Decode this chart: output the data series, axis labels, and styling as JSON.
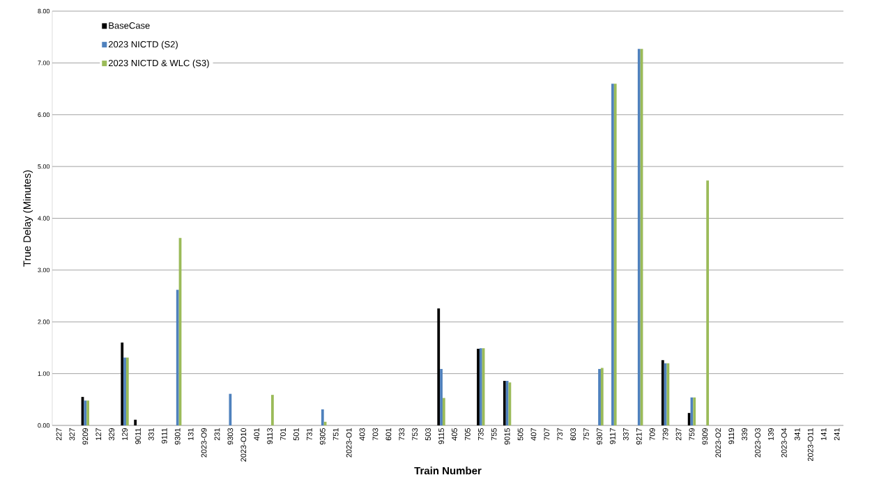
{
  "chart_data": {
    "type": "bar",
    "xlabel": "Train Number",
    "ylabel": "True Delay (Minutes)",
    "categories": [
      "227",
      "327",
      "9209",
      "127",
      "329",
      "129",
      "9011",
      "331",
      "9111",
      "9301",
      "131",
      "2023-O9",
      "231",
      "9303",
      "2023-O10",
      "401",
      "9113",
      "701",
      "501",
      "731",
      "9305",
      "751",
      "2023-O1",
      "403",
      "703",
      "601",
      "733",
      "753",
      "503",
      "9115",
      "405",
      "705",
      "735",
      "755",
      "9015",
      "505",
      "407",
      "707",
      "737",
      "603",
      "757",
      "9307",
      "9117",
      "337",
      "9217",
      "709",
      "739",
      "237",
      "759",
      "9309",
      "2023-O2",
      "9119",
      "339",
      "2023-O3",
      "139",
      "2023-O4",
      "341",
      "2023-O11",
      "141",
      "241"
    ],
    "series": [
      {
        "name": "BaseCase",
        "color": "#000000",
        "values": [
          0,
          0,
          0.55,
          0,
          0,
          1.6,
          0.11,
          0,
          0,
          0,
          0,
          0,
          0,
          0,
          0,
          0,
          0,
          0,
          0,
          0,
          0,
          0,
          0,
          0,
          0,
          0,
          0,
          0,
          0,
          2.26,
          0,
          0,
          1.48,
          0,
          0.86,
          0,
          0,
          0,
          0,
          0,
          0,
          0,
          0,
          0,
          0,
          0,
          1.26,
          0,
          0.24,
          0,
          0,
          0,
          0,
          0,
          0,
          0,
          0,
          0,
          0,
          0
        ]
      },
      {
        "name": "2023 NICTD (S2)",
        "color": "#4f81bd",
        "values": [
          0,
          0,
          0.48,
          0,
          0,
          1.31,
          0,
          0,
          0,
          2.62,
          0,
          0,
          0,
          0.61,
          0,
          0,
          0,
          0,
          0,
          0,
          0.31,
          0,
          0,
          0,
          0,
          0,
          0,
          0,
          0,
          1.09,
          0,
          0,
          1.49,
          0,
          0.86,
          0,
          0,
          0,
          0,
          0,
          0,
          1.09,
          6.6,
          0,
          7.27,
          0,
          1.2,
          0,
          0.54,
          0,
          0,
          0,
          0,
          0,
          0,
          0,
          0,
          0,
          0,
          0
        ]
      },
      {
        "name": "2023 NICTD & WLC (S3)",
        "color": "#9bbb59",
        "values": [
          0,
          0,
          0.48,
          0,
          0,
          1.31,
          0,
          0,
          0,
          3.62,
          0,
          0,
          0,
          0,
          0,
          0,
          0.59,
          0,
          0,
          0,
          0.07,
          0,
          0,
          0,
          0,
          0,
          0,
          0,
          0,
          0.53,
          0,
          0,
          1.49,
          0,
          0.83,
          0,
          0,
          0,
          0,
          0,
          0,
          1.11,
          6.6,
          0,
          7.27,
          0,
          1.2,
          0,
          0.54,
          4.73,
          0,
          0,
          0,
          0,
          0,
          0,
          0,
          0,
          0,
          0
        ]
      }
    ],
    "ylim": [
      0,
      8
    ],
    "yticks": [
      {
        "value": 0,
        "label": "0.00"
      },
      {
        "value": 1,
        "label": "1.00"
      },
      {
        "value": 2,
        "label": "2.00"
      },
      {
        "value": 3,
        "label": "3.00"
      },
      {
        "value": 4,
        "label": "4.00"
      },
      {
        "value": 5,
        "label": "5.00"
      },
      {
        "value": 6,
        "label": "6.00"
      },
      {
        "value": 7,
        "label": "7.00"
      },
      {
        "value": 8,
        "label": "8.00"
      }
    ],
    "grid": "y",
    "legend": "top left"
  }
}
